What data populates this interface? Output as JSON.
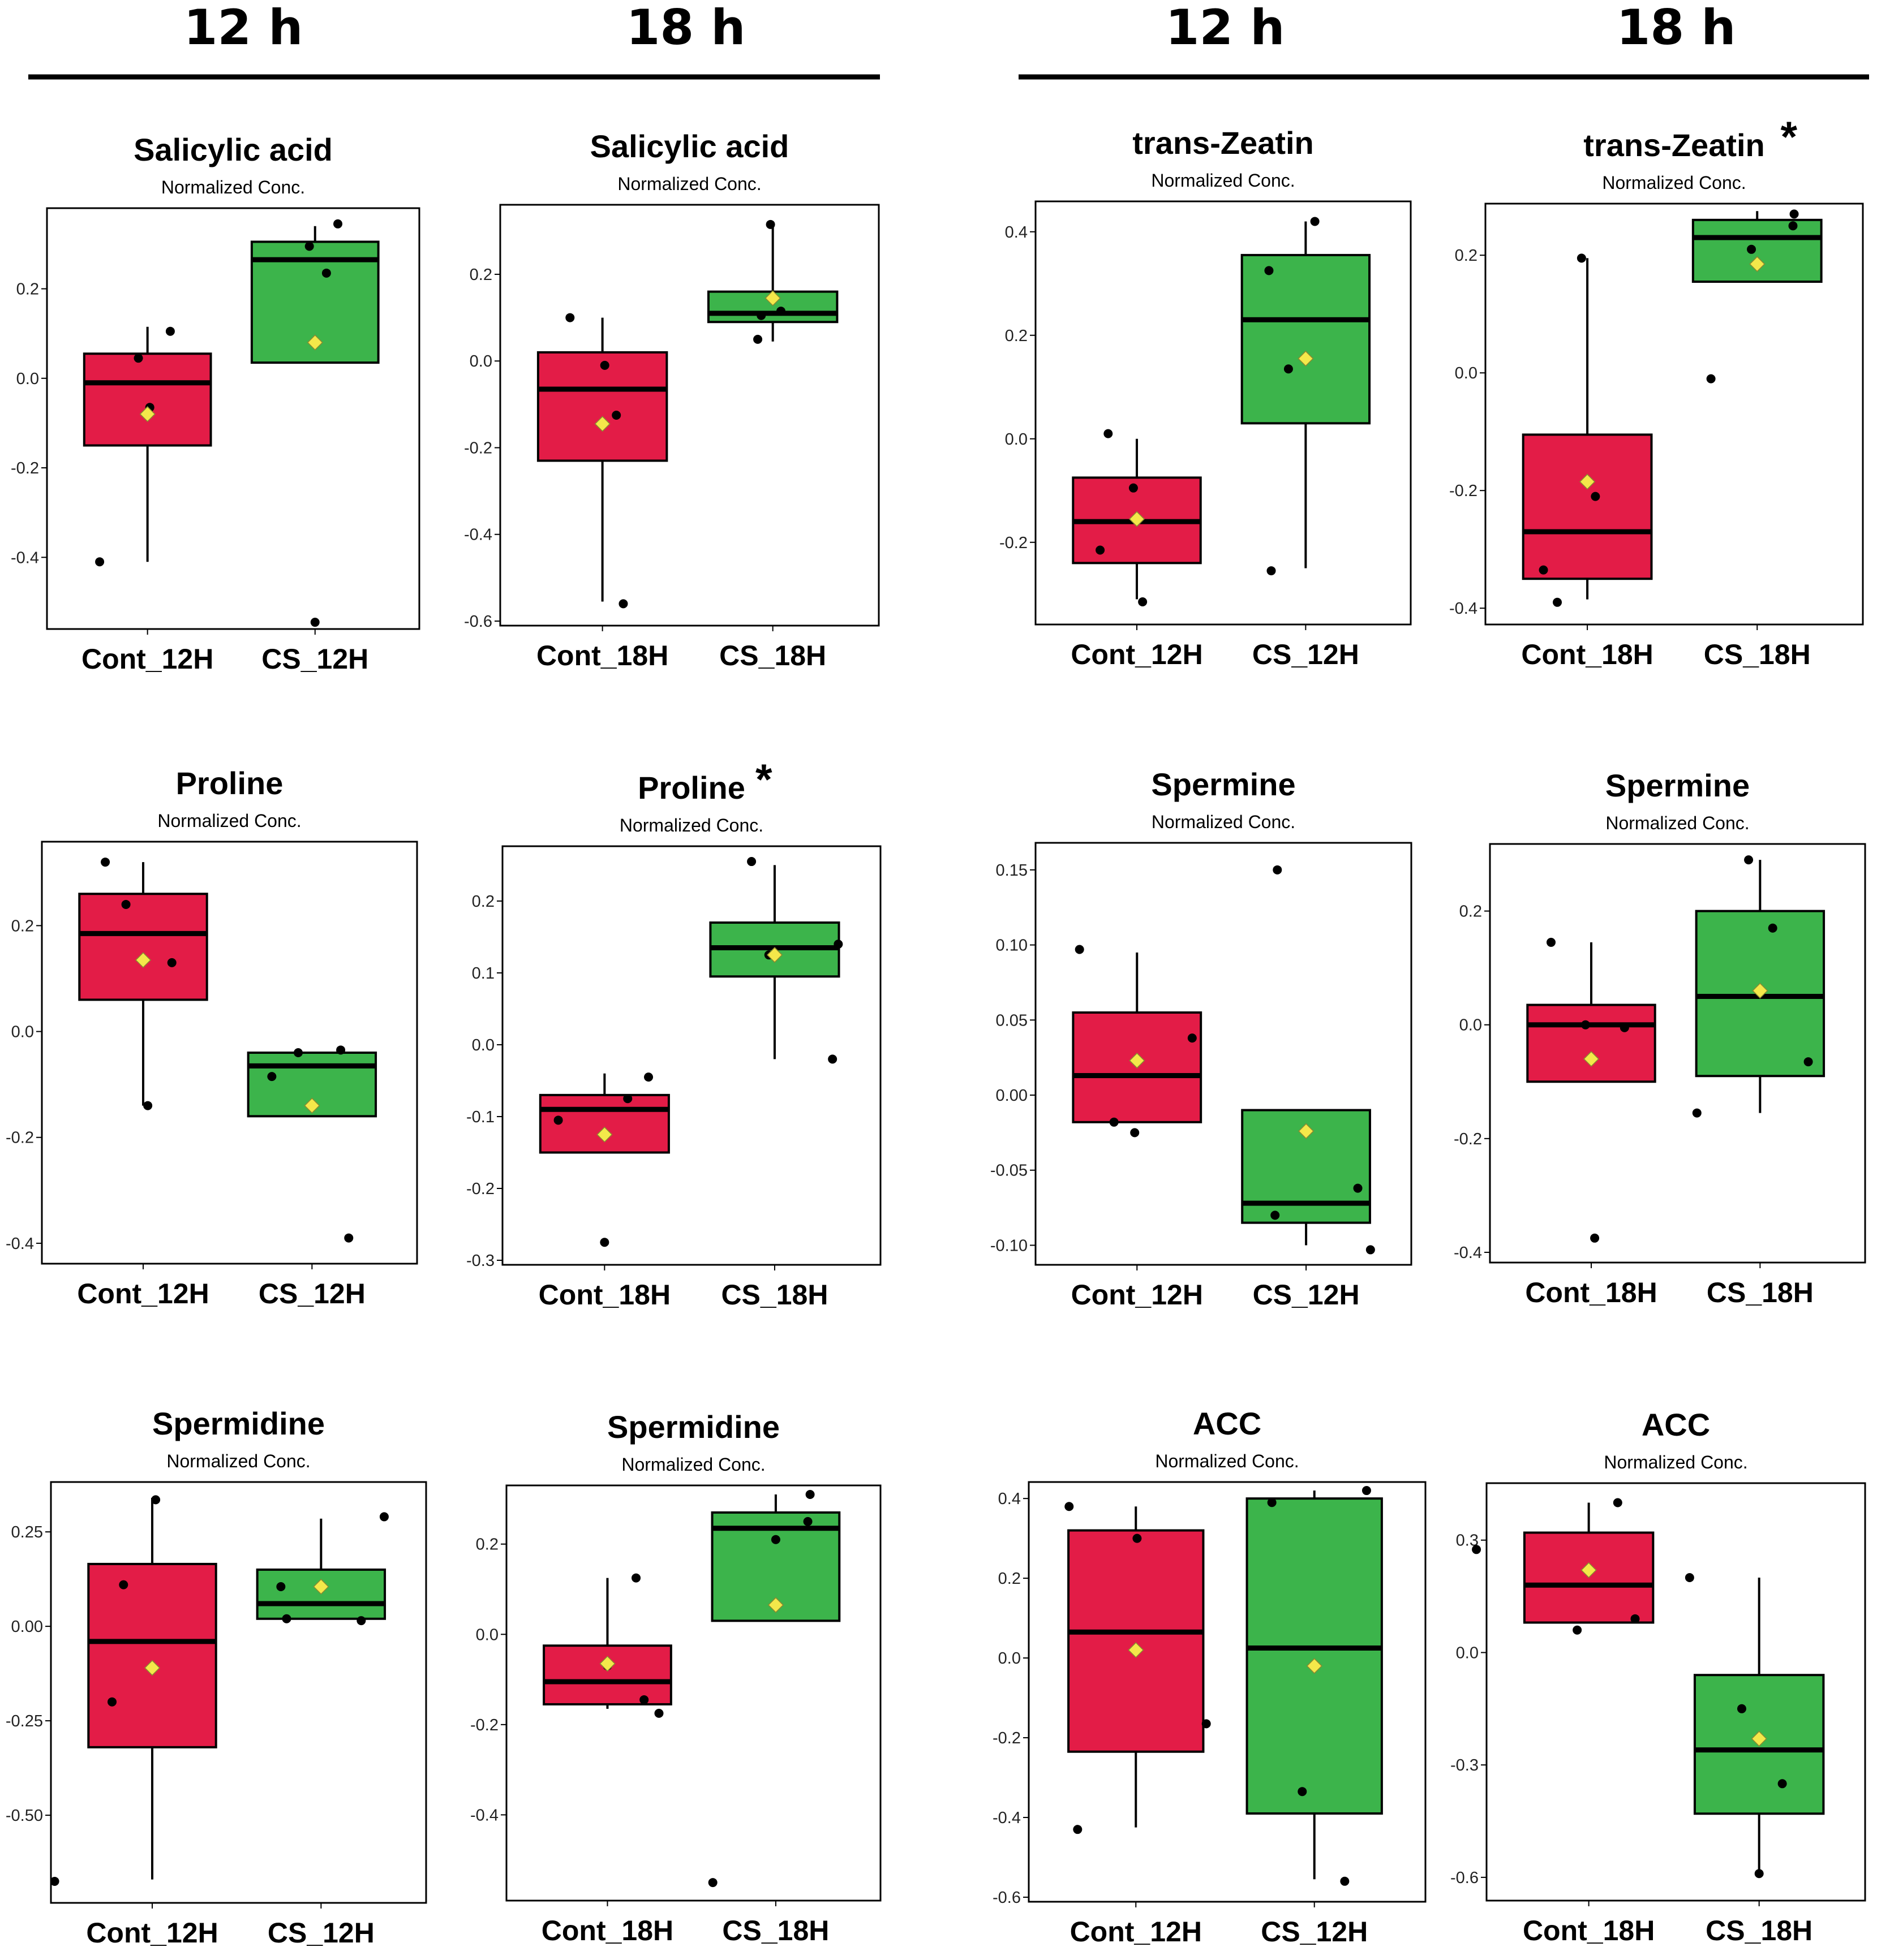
{
  "headers": {
    "left": [
      "12 h",
      "18 h"
    ],
    "right": [
      "12 h",
      "18 h"
    ]
  },
  "colors": {
    "control": "#e31c47",
    "stress": "#3cb44b",
    "mean": "#f4e84a",
    "point": "#000000"
  },
  "chart_data": [
    {
      "type": "boxplot",
      "title": "Salicylic acid",
      "subtitle": "Normalized Conc.",
      "significant": false,
      "yticks": [
        -0.4,
        -0.2,
        0.0,
        0.2
      ],
      "ylim": [
        -0.55,
        0.37
      ],
      "groups": [
        {
          "name": "Cont_12H",
          "color": "control",
          "box": {
            "q1": -0.15,
            "median": -0.01,
            "q3": 0.055,
            "whisker_low": -0.41,
            "whisker_high": 0.115
          },
          "mean": -0.08,
          "points": [
            [
              -0.42,
              -0.41
            ],
            [
              -0.08,
              0.045
            ],
            [
              0.02,
              -0.065
            ],
            [
              0.2,
              0.105
            ]
          ]
        },
        {
          "name": "CS_12H",
          "color": "stress",
          "box": {
            "q1": 0.035,
            "median": 0.265,
            "q3": 0.305,
            "whisker_low": 0.035,
            "whisker_high": 0.34
          },
          "mean": 0.08,
          "points": [
            [
              0.0,
              -0.545
            ],
            [
              0.1,
              0.235
            ],
            [
              -0.05,
              0.295
            ],
            [
              0.2,
              0.345
            ]
          ]
        }
      ]
    },
    {
      "type": "boxplot",
      "title": "Salicylic acid",
      "subtitle": "Normalized Conc.",
      "significant": false,
      "yticks": [
        -0.6,
        -0.4,
        -0.2,
        0.0,
        0.2
      ],
      "ylim": [
        -0.6,
        0.35
      ],
      "groups": [
        {
          "name": "Cont_18H",
          "color": "control",
          "box": {
            "q1": -0.23,
            "median": -0.065,
            "q3": 0.02,
            "whisker_low": -0.555,
            "whisker_high": 0.1
          },
          "mean": -0.145,
          "points": [
            [
              -0.28,
              0.1
            ],
            [
              0.02,
              -0.01
            ],
            [
              0.12,
              -0.125
            ],
            [
              0.18,
              -0.56
            ]
          ]
        },
        {
          "name": "CS_18H",
          "color": "stress",
          "box": {
            "q1": 0.09,
            "median": 0.11,
            "q3": 0.16,
            "whisker_low": 0.045,
            "whisker_high": 0.31
          },
          "mean": 0.145,
          "points": [
            [
              -0.13,
              0.05
            ],
            [
              -0.1,
              0.105
            ],
            [
              0.07,
              0.115
            ],
            [
              -0.02,
              0.315
            ]
          ]
        }
      ]
    },
    {
      "type": "boxplot",
      "title": "trans-Zeatin",
      "subtitle": "Normalized Conc.",
      "significant": false,
      "yticks": [
        -0.2,
        0.0,
        0.2,
        0.4
      ],
      "ylim": [
        -0.35,
        0.45
      ],
      "groups": [
        {
          "name": "Cont_12H",
          "color": "control",
          "box": {
            "q1": -0.24,
            "median": -0.16,
            "q3": -0.075,
            "whisker_low": -0.31,
            "whisker_high": 0.0
          },
          "mean": -0.155,
          "points": [
            [
              -0.25,
              0.01
            ],
            [
              -0.03,
              -0.095
            ],
            [
              -0.32,
              -0.215
            ],
            [
              0.05,
              -0.315
            ]
          ]
        },
        {
          "name": "CS_12H",
          "color": "stress",
          "box": {
            "q1": 0.03,
            "median": 0.23,
            "q3": 0.355,
            "whisker_low": -0.25,
            "whisker_high": 0.42
          },
          "mean": 0.155,
          "points": [
            [
              -0.32,
              0.325
            ],
            [
              -0.15,
              0.135
            ],
            [
              0.08,
              0.42
            ],
            [
              -0.3,
              -0.255
            ]
          ]
        }
      ]
    },
    {
      "type": "boxplot",
      "title": "trans-Zeatin",
      "subtitle": "Normalized Conc.",
      "significant": true,
      "yticks": [
        -0.4,
        -0.2,
        0.0,
        0.2
      ],
      "ylim": [
        -0.42,
        0.28
      ],
      "groups": [
        {
          "name": "Cont_18H",
          "color": "control",
          "box": {
            "q1": -0.35,
            "median": -0.27,
            "q3": -0.105,
            "whisker_low": -0.385,
            "whisker_high": 0.195
          },
          "mean": -0.185,
          "points": [
            [
              -0.05,
              0.195
            ],
            [
              0.07,
              -0.21
            ],
            [
              -0.38,
              -0.335
            ],
            [
              -0.26,
              -0.39
            ]
          ]
        },
        {
          "name": "CS_18H",
          "color": "stress",
          "box": {
            "q1": 0.155,
            "median": 0.23,
            "q3": 0.26,
            "whisker_low": 0.155,
            "whisker_high": 0.275
          },
          "mean": 0.185,
          "points": [
            [
              -0.05,
              0.21
            ],
            [
              0.32,
              0.27
            ],
            [
              0.31,
              0.25
            ],
            [
              -0.4,
              -0.01
            ]
          ]
        }
      ]
    },
    {
      "type": "boxplot",
      "title": "Proline",
      "subtitle": "Normalized Conc.",
      "significant": false,
      "yticks": [
        -0.4,
        -0.2,
        0.0,
        0.2
      ],
      "ylim": [
        -0.43,
        0.35
      ],
      "groups": [
        {
          "name": "Cont_12H",
          "color": "control",
          "box": {
            "q1": 0.06,
            "median": 0.185,
            "q3": 0.26,
            "whisker_low": -0.14,
            "whisker_high": 0.32
          },
          "mean": 0.135,
          "points": [
            [
              -0.33,
              0.32
            ],
            [
              -0.15,
              0.24
            ],
            [
              0.04,
              -0.14
            ],
            [
              0.25,
              0.13
            ]
          ]
        },
        {
          "name": "CS_12H",
          "color": "stress",
          "box": {
            "q1": -0.16,
            "median": -0.065,
            "q3": -0.04,
            "whisker_low": -0.16,
            "whisker_high": -0.04
          },
          "mean": -0.14,
          "points": [
            [
              -0.35,
              -0.085
            ],
            [
              -0.12,
              -0.04
            ],
            [
              0.25,
              -0.035
            ],
            [
              0.32,
              -0.39
            ]
          ]
        }
      ]
    },
    {
      "type": "boxplot",
      "title": "Proline",
      "subtitle": "Normalized Conc.",
      "significant": true,
      "yticks": [
        -0.3,
        -0.2,
        -0.1,
        0.0,
        0.1,
        0.2
      ],
      "ylim": [
        -0.3,
        0.27
      ],
      "groups": [
        {
          "name": "Cont_18H",
          "color": "control",
          "box": {
            "q1": -0.15,
            "median": -0.09,
            "q3": -0.07,
            "whisker_low": -0.15,
            "whisker_high": -0.04
          },
          "mean": -0.125,
          "points": [
            [
              -0.4,
              -0.105
            ],
            [
              0.2,
              -0.075
            ],
            [
              0.38,
              -0.045
            ],
            [
              0.0,
              -0.275
            ]
          ]
        },
        {
          "name": "CS_18H",
          "color": "stress",
          "box": {
            "q1": 0.095,
            "median": 0.135,
            "q3": 0.17,
            "whisker_low": -0.02,
            "whisker_high": 0.25
          },
          "mean": 0.125,
          "points": [
            [
              -0.2,
              0.255
            ],
            [
              0.55,
              0.14
            ],
            [
              0.5,
              -0.02
            ],
            [
              -0.05,
              0.125
            ]
          ]
        }
      ]
    },
    {
      "type": "boxplot",
      "title": "Spermine",
      "subtitle": "Normalized Conc.",
      "significant": false,
      "yticks": [
        -0.1,
        -0.05,
        0.0,
        0.05,
        0.1,
        0.15
      ],
      "ylim": [
        -0.11,
        0.165
      ],
      "groups": [
        {
          "name": "Cont_12H",
          "color": "control",
          "box": {
            "q1": -0.018,
            "median": 0.013,
            "q3": 0.055,
            "whisker_low": -0.018,
            "whisker_high": 0.095
          },
          "mean": 0.023,
          "points": [
            [
              -0.5,
              0.097
            ],
            [
              0.48,
              0.038
            ],
            [
              -0.2,
              -0.018
            ],
            [
              -0.02,
              -0.025
            ]
          ]
        },
        {
          "name": "CS_12H",
          "color": "stress",
          "box": {
            "q1": -0.085,
            "median": -0.072,
            "q3": -0.01,
            "whisker_low": -0.1,
            "whisker_high": -0.01
          },
          "mean": -0.024,
          "points": [
            [
              -0.25,
              0.15
            ],
            [
              -0.27,
              -0.08
            ],
            [
              0.45,
              -0.062
            ],
            [
              0.56,
              -0.103
            ]
          ]
        }
      ]
    },
    {
      "type": "boxplot",
      "title": "Spermine",
      "subtitle": "Normalized Conc.",
      "significant": false,
      "yticks": [
        -0.4,
        -0.2,
        0.0,
        0.2
      ],
      "ylim": [
        -0.41,
        0.31
      ],
      "groups": [
        {
          "name": "Cont_18H",
          "color": "control",
          "box": {
            "q1": -0.1,
            "median": 0.0,
            "q3": 0.035,
            "whisker_low": -0.1,
            "whisker_high": 0.145
          },
          "mean": -0.06,
          "points": [
            [
              -0.35,
              0.145
            ],
            [
              -0.05,
              0.0
            ],
            [
              0.29,
              -0.005
            ],
            [
              0.03,
              -0.375
            ]
          ]
        },
        {
          "name": "CS_18H",
          "color": "stress",
          "box": {
            "q1": -0.09,
            "median": 0.05,
            "q3": 0.2,
            "whisker_low": -0.155,
            "whisker_high": 0.29
          },
          "mean": 0.06,
          "points": [
            [
              -0.1,
              0.29
            ],
            [
              0.11,
              0.17
            ],
            [
              0.42,
              -0.065
            ],
            [
              -0.55,
              -0.155
            ]
          ]
        }
      ]
    },
    {
      "type": "boxplot",
      "title": "Spermidine",
      "subtitle": "Normalized Conc.",
      "significant": false,
      "yticks": [
        -0.5,
        -0.25,
        0.0,
        0.25
      ],
      "ylim": [
        -0.72,
        0.37
      ],
      "groups": [
        {
          "name": "Cont_12H",
          "color": "control",
          "box": {
            "q1": -0.32,
            "median": -0.04,
            "q3": 0.165,
            "whisker_low": -0.67,
            "whisker_high": 0.34
          },
          "mean": -0.11,
          "points": [
            [
              -0.85,
              -0.675
            ],
            [
              -0.25,
              0.11
            ],
            [
              -0.35,
              -0.2
            ],
            [
              0.03,
              0.335
            ]
          ]
        },
        {
          "name": "CS_12H",
          "color": "stress",
          "box": {
            "q1": 0.02,
            "median": 0.06,
            "q3": 0.15,
            "whisker_low": 0.02,
            "whisker_high": 0.285
          },
          "mean": 0.105,
          "points": [
            [
              -0.35,
              0.105
            ],
            [
              -0.3,
              0.02
            ],
            [
              0.35,
              0.015
            ],
            [
              0.55,
              0.29
            ]
          ]
        }
      ]
    },
    {
      "type": "boxplot",
      "title": "Spermidine",
      "subtitle": "Normalized Conc.",
      "significant": false,
      "yticks": [
        -0.4,
        -0.2,
        0.0,
        0.2
      ],
      "ylim": [
        -0.58,
        0.32
      ],
      "groups": [
        {
          "name": "Cont_18H",
          "color": "control",
          "box": {
            "q1": -0.155,
            "median": -0.105,
            "q3": -0.025,
            "whisker_low": -0.165,
            "whisker_high": 0.125
          },
          "mean": -0.065,
          "points": [
            [
              0.25,
              0.125
            ],
            [
              0.32,
              -0.145
            ],
            [
              0.45,
              -0.175
            ],
            [
              0.0,
              -0.07
            ]
          ]
        },
        {
          "name": "CS_18H",
          "color": "stress",
          "box": {
            "q1": 0.03,
            "median": 0.235,
            "q3": 0.27,
            "whisker_low": 0.03,
            "whisker_high": 0.31
          },
          "mean": 0.065,
          "points": [
            [
              0.3,
              0.31
            ],
            [
              0.28,
              0.25
            ],
            [
              0.0,
              0.21
            ],
            [
              -0.55,
              -0.55
            ]
          ]
        }
      ]
    },
    {
      "type": "boxplot",
      "title": "ACC",
      "subtitle": "Normalized Conc.",
      "significant": false,
      "yticks": [
        -0.6,
        -0.4,
        -0.2,
        0.0,
        0.2,
        0.4
      ],
      "ylim": [
        -0.6,
        0.43
      ],
      "groups": [
        {
          "name": "Cont_12H",
          "color": "control",
          "box": {
            "q1": -0.235,
            "median": 0.065,
            "q3": 0.32,
            "whisker_low": -0.425,
            "whisker_high": 0.38
          },
          "mean": 0.02,
          "points": [
            [
              -0.55,
              0.38
            ],
            [
              0.01,
              0.3
            ],
            [
              0.58,
              -0.165
            ],
            [
              -0.48,
              -0.43
            ]
          ]
        },
        {
          "name": "CS_12H",
          "color": "stress",
          "box": {
            "q1": -0.39,
            "median": 0.025,
            "q3": 0.4,
            "whisker_low": -0.555,
            "whisker_high": 0.42
          },
          "mean": -0.02,
          "points": [
            [
              -0.35,
              0.39
            ],
            [
              0.43,
              0.42
            ],
            [
              -0.1,
              -0.335
            ],
            [
              0.25,
              -0.56
            ]
          ]
        }
      ]
    },
    {
      "type": "boxplot",
      "title": "ACC",
      "subtitle": "Normalized Conc.",
      "significant": false,
      "yticks": [
        -0.6,
        -0.3,
        0.0,
        0.3
      ],
      "ylim": [
        -0.65,
        0.44
      ],
      "groups": [
        {
          "name": "Cont_18H",
          "color": "control",
          "box": {
            "q1": 0.08,
            "median": 0.18,
            "q3": 0.32,
            "whisker_low": 0.08,
            "whisker_high": 0.4
          },
          "mean": 0.22,
          "points": [
            [
              -0.97,
              0.275
            ],
            [
              0.25,
              0.4
            ],
            [
              -0.1,
              0.06
            ],
            [
              0.4,
              0.09
            ]
          ]
        },
        {
          "name": "CS_18H",
          "color": "stress",
          "box": {
            "q1": -0.43,
            "median": -0.26,
            "q3": -0.06,
            "whisker_low": -0.58,
            "whisker_high": 0.2
          },
          "mean": -0.23,
          "points": [
            [
              -0.6,
              0.2
            ],
            [
              -0.15,
              -0.15
            ],
            [
              0.2,
              -0.35
            ],
            [
              0.0,
              -0.59
            ]
          ]
        }
      ]
    }
  ]
}
